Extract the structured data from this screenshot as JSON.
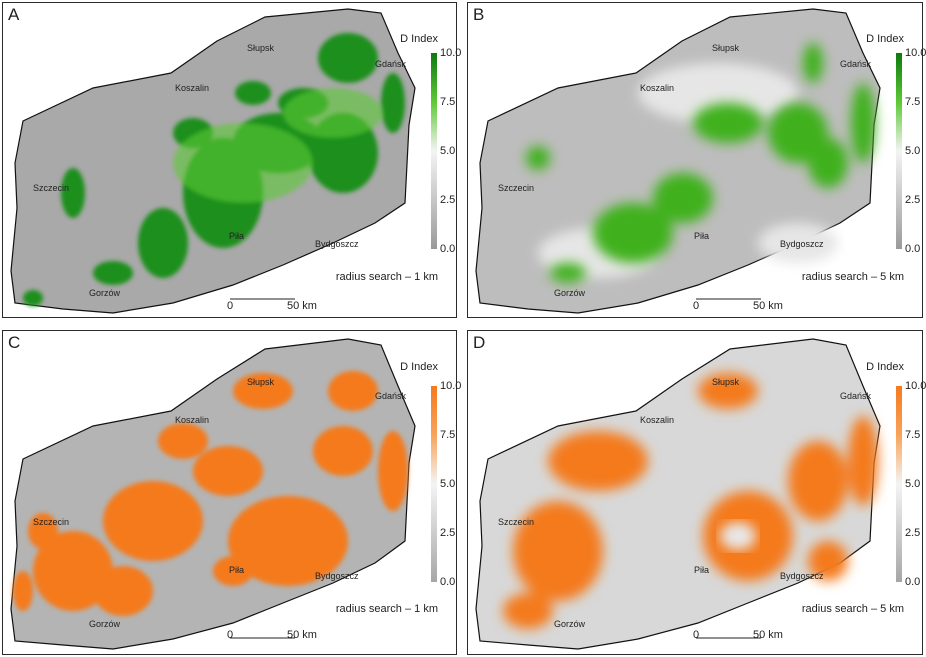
{
  "legend": {
    "title": "D Index",
    "ticks": [
      "10.0",
      "7.5",
      "5.0",
      "2.5",
      "0.0"
    ],
    "colors": {
      "green_high": "#0d7a0d",
      "green_mid": "#5cc934",
      "orange_high": "#f47a1f",
      "orange_mid": "#f8a35a",
      "low": "#a6a6a6",
      "mid": "#f2f2f2"
    }
  },
  "scale_bar": {
    "start": "0",
    "end": "50 km"
  },
  "panels": [
    {
      "letter": "A",
      "palette": "green",
      "radius_label": "radius search – 1 km"
    },
    {
      "letter": "B",
      "palette": "green",
      "radius_label": "radius search – 5 km"
    },
    {
      "letter": "C",
      "palette": "orange",
      "radius_label": "radius search – 1 km"
    },
    {
      "letter": "D",
      "palette": "orange",
      "radius_label": "radius search – 5 km"
    }
  ],
  "cities": {
    "slupsk": "Słupsk",
    "gdansk": "Gdańsk",
    "koszalin": "Koszalin",
    "szczecin": "Szczecin",
    "pila": "Piła",
    "bydgoszcz": "Bydgoszcz",
    "gorzow": "Gorzów"
  }
}
